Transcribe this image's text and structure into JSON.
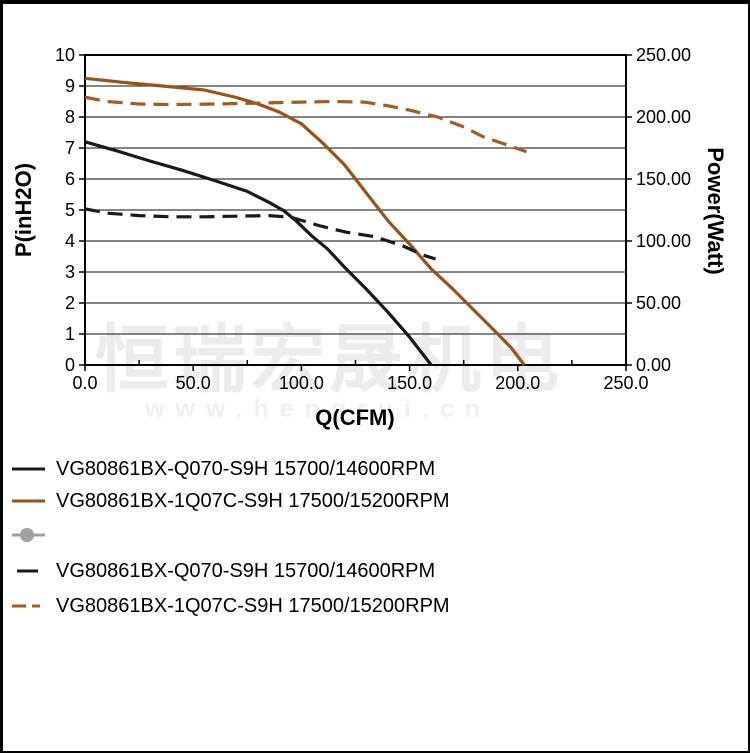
{
  "watermark": {
    "line1": "恒瑞宏晟机电",
    "line2": "www.hengrui.cn"
  },
  "chart_data": {
    "type": "line",
    "title": "",
    "xlabel": "Q(CFM)",
    "ylabel_left": "P(inH2O)",
    "ylabel_right": "Power(Watt)",
    "xlim": [
      0,
      250
    ],
    "ylim_left": [
      0,
      10
    ],
    "ylim_right": [
      0,
      250
    ],
    "x_tick_labels": [
      "0.0",
      "50.0",
      "100.0",
      "150.0",
      "200.0",
      "250.0"
    ],
    "x_tick_values": [
      0,
      50,
      100,
      150,
      200,
      250
    ],
    "x_minor_tick_values": [
      25,
      75,
      125,
      175,
      225
    ],
    "left_tick_labels": [
      "0",
      "1",
      "2",
      "3",
      "4",
      "5",
      "6",
      "7",
      "8",
      "9",
      "10"
    ],
    "left_tick_values": [
      0,
      1,
      2,
      3,
      4,
      5,
      6,
      7,
      8,
      9,
      10
    ],
    "right_tick_labels": [
      "0.00",
      "50.00",
      "100.00",
      "150.00",
      "200.00",
      "250.00"
    ],
    "right_tick_values": [
      0,
      50,
      100,
      150,
      200,
      250
    ],
    "grid": "horizontal",
    "legend_position": "bottom-left",
    "colors": {
      "black_curve": "#1a1a1a",
      "brown_solid": "#9a5217",
      "brown_dashed": "#a65c1e",
      "gray_marker": "#a0a0a0",
      "gridline": "#3c3c3c",
      "frame": "#000000"
    },
    "series": [
      {
        "name": "VG80861BX-Q070-S9H 15700/14600RPM",
        "quantity": "static pressure P(inH2O)",
        "axis": "left",
        "style": "solid",
        "color": "#1a1a1a",
        "points": [
          [
            0,
            7.2
          ],
          [
            15,
            6.9
          ],
          [
            30,
            6.58
          ],
          [
            45,
            6.28
          ],
          [
            60,
            5.95
          ],
          [
            75,
            5.6
          ],
          [
            85,
            5.25
          ],
          [
            92,
            4.97
          ],
          [
            98,
            4.62
          ],
          [
            105,
            4.15
          ],
          [
            112,
            3.75
          ],
          [
            120,
            3.15
          ],
          [
            130,
            2.45
          ],
          [
            140,
            1.7
          ],
          [
            150,
            0.9
          ],
          [
            160,
            0
          ]
        ]
      },
      {
        "name": "VG80861BX-1Q07C-S9H 17500/15200RPM",
        "quantity": "static pressure P(inH2O)",
        "axis": "left",
        "style": "solid",
        "color": "#9a5217",
        "points": [
          [
            0,
            9.25
          ],
          [
            20,
            9.1
          ],
          [
            40,
            8.97
          ],
          [
            55,
            8.87
          ],
          [
            70,
            8.63
          ],
          [
            80,
            8.42
          ],
          [
            90,
            8.15
          ],
          [
            100,
            7.78
          ],
          [
            110,
            7.15
          ],
          [
            120,
            6.45
          ],
          [
            130,
            5.55
          ],
          [
            140,
            4.65
          ],
          [
            150,
            3.9
          ],
          [
            160,
            3.1
          ],
          [
            170,
            2.45
          ],
          [
            180,
            1.75
          ],
          [
            190,
            1.05
          ],
          [
            197,
            0.55
          ],
          [
            203,
            0
          ]
        ]
      },
      {
        "name": "VG80861BX-Q070-S9H 15700/14600RPM",
        "quantity": "power (Watt)",
        "axis": "right",
        "style": "dashed",
        "color": "#1a1a1a",
        "points": [
          [
            0,
            126
          ],
          [
            10,
            122.5
          ],
          [
            25,
            120.5
          ],
          [
            40,
            119.5
          ],
          [
            55,
            119.5
          ],
          [
            70,
            120
          ],
          [
            85,
            120.5
          ],
          [
            95,
            119.2
          ],
          [
            109,
            112
          ],
          [
            121,
            107
          ],
          [
            134,
            103.5
          ],
          [
            147,
            96
          ],
          [
            156,
            88.8
          ],
          [
            162,
            85.5
          ]
        ]
      },
      {
        "name": "VG80861BX-1Q07C-S9H 17500/15200RPM",
        "quantity": "power (Watt)",
        "axis": "right",
        "style": "dashed",
        "color": "#a65c1e",
        "points": [
          [
            0,
            216
          ],
          [
            10,
            212.5
          ],
          [
            25,
            210.5
          ],
          [
            40,
            210
          ],
          [
            60,
            210.5
          ],
          [
            80,
            211.2
          ],
          [
            100,
            212
          ],
          [
            115,
            212.5
          ],
          [
            129,
            212
          ],
          [
            140,
            209
          ],
          [
            150,
            205.5
          ],
          [
            163,
            200
          ],
          [
            175,
            192
          ],
          [
            184,
            184
          ],
          [
            195,
            177.5
          ],
          [
            204,
            172
          ]
        ]
      }
    ]
  },
  "legend": {
    "items": [
      {
        "label": "VG80861BX-Q070-S9H 15700/14600RPM",
        "swatch": "solid",
        "color": "#1a1a1a"
      },
      {
        "label": "VG80861BX-1Q07C-S9H 17500/15200RPM",
        "swatch": "solid",
        "color": "#9a5217"
      },
      {
        "label": "",
        "swatch": "marker",
        "color": "#a0a0a0"
      },
      {
        "label": "VG80861BX-Q070-S9H 15700/14600RPM",
        "swatch": "dash",
        "color": "#1a1a1a"
      },
      {
        "label": "VG80861BX-1Q07C-S9H 17500/15200RPM",
        "swatch": "dash2",
        "color": "#a65c1e"
      }
    ]
  }
}
